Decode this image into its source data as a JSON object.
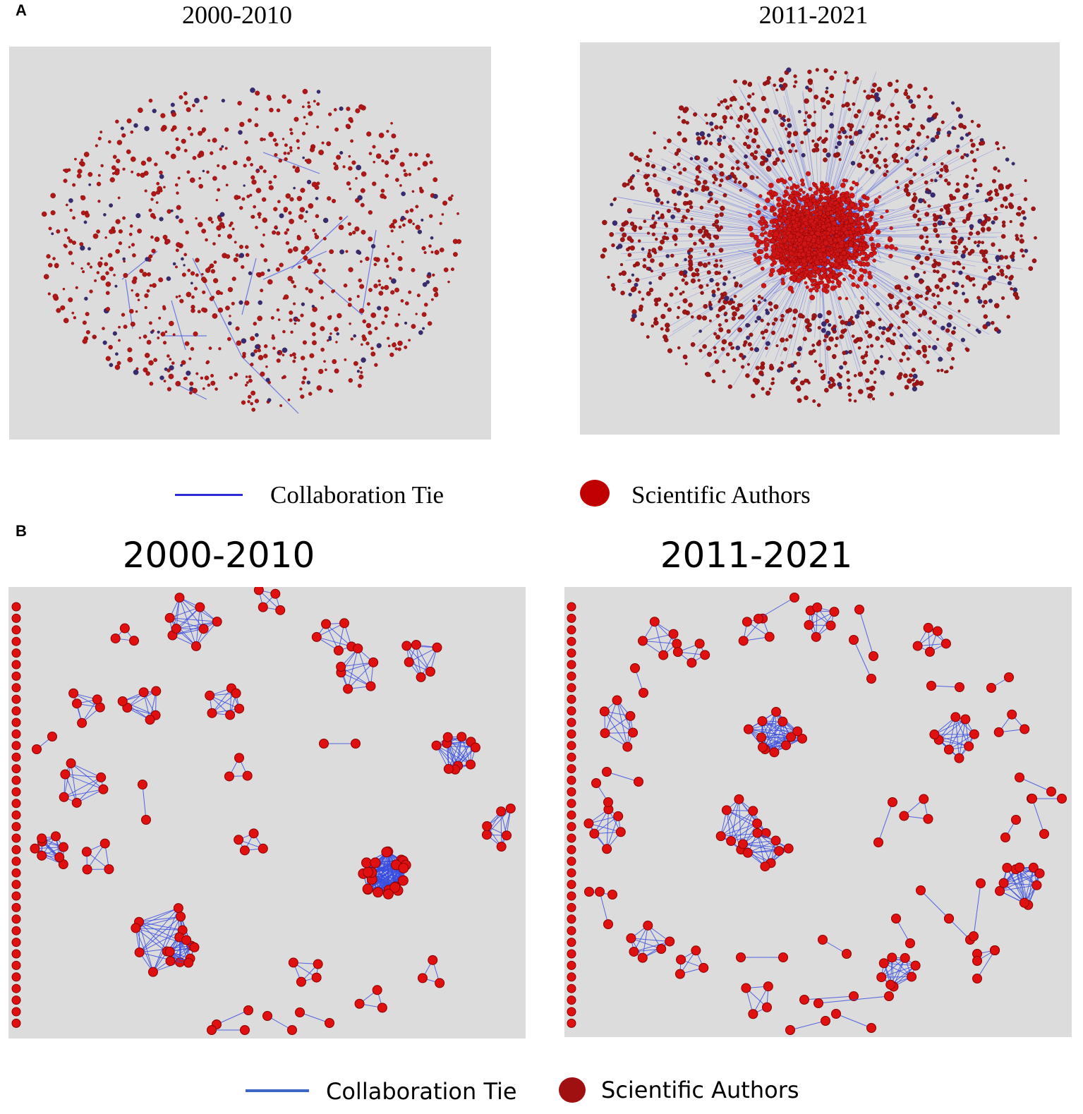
{
  "panel_a": {
    "letter": "A",
    "left_title": "2000-2010",
    "right_title": "2011-2021",
    "legend": {
      "tie_label": "Collaboration Tie",
      "author_label": "Scientific Authors"
    }
  },
  "panel_b": {
    "letter": "B",
    "left_title": "2000-2010",
    "right_title": "2011-2021",
    "legend": {
      "tie_label": "Collaboration Tie",
      "author_label": "Scientific Authors"
    }
  },
  "colors": {
    "node": "#e01010",
    "node_stroke": "#8a0000",
    "edge": "#3a4ee0",
    "background": "#dcdcdc",
    "legend_tie_a": "#2c2cd6",
    "legend_node_a": "#c00000",
    "legend_tie_b": "#3a66c6",
    "legend_node_b": "#a01010"
  }
}
